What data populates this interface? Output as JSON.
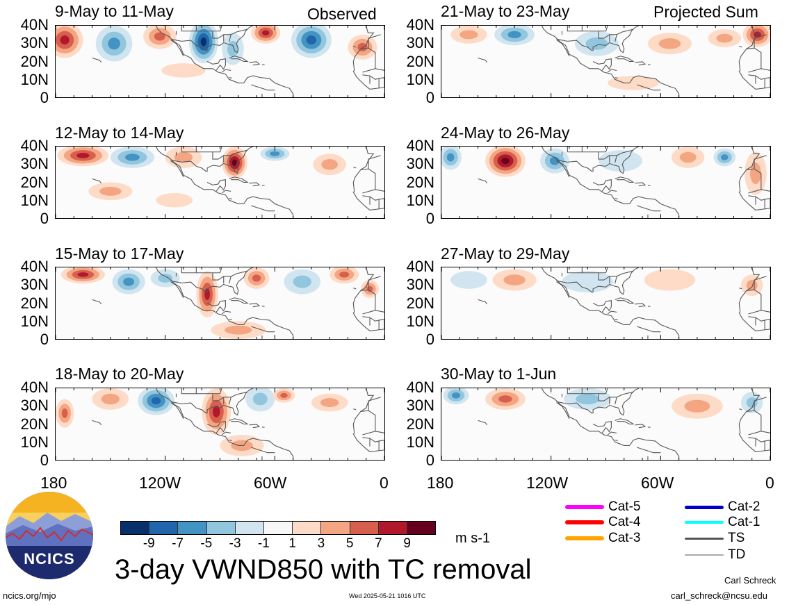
{
  "colors": {
    "n9": "#08306b",
    "n7": "#2166ac",
    "n5": "#4393c3",
    "n3": "#92c5de",
    "n1": "#d1e5f0",
    "zero": "#f7f7f7",
    "p1": "#fddbc7",
    "p3": "#f4a582",
    "p5": "#d6604d",
    "p7": "#b2182b",
    "p9": "#67001f",
    "coast": "#555555"
  },
  "labels": {
    "observed": "Observed",
    "projected": "Projected Sum",
    "main_title": "3-day VWND850 with TC removal",
    "units": "m s-1",
    "site": "ncics.org/mjo",
    "timestamp": "Wed 2025-05-21 1016 UTC",
    "author": "Carl Schreck",
    "email": "carl_schreck@ncsu.edu",
    "logo_text": "NCICS"
  },
  "lat_ticks": [
    "40N",
    "30N",
    "20N",
    "10N",
    "0"
  ],
  "lon_ticks": [
    "180",
    "120W",
    "60W",
    "0"
  ],
  "colorbar_ticks": [
    "-9",
    "-7",
    "-5",
    "-3",
    "-1",
    "1",
    "3",
    "5",
    "7",
    "9"
  ],
  "panels": [
    {
      "id": "p1",
      "title": "9-May to 11-May",
      "column": 0,
      "row": 0,
      "anomalies": [
        {
          "lon": -175,
          "lat": 32,
          "rx": 10,
          "ry": 10,
          "value": 7
        },
        {
          "lon": -148,
          "lat": 30,
          "rx": 10,
          "ry": 10,
          "value": -5
        },
        {
          "lon": -123,
          "lat": 34,
          "rx": 9,
          "ry": 7,
          "value": 5
        },
        {
          "lon": -99,
          "lat": 31,
          "rx": 8,
          "ry": 12,
          "value": -9
        },
        {
          "lon": -83,
          "lat": 27,
          "rx": 6,
          "ry": 9,
          "value": -3
        },
        {
          "lon": -65,
          "lat": 36,
          "rx": 8,
          "ry": 6,
          "value": 7
        },
        {
          "lon": -40,
          "lat": 32,
          "rx": 11,
          "ry": 10,
          "value": -7
        },
        {
          "lon": -12,
          "lat": 28,
          "rx": 8,
          "ry": 7,
          "value": 5
        },
        {
          "lon": -110,
          "lat": 15,
          "rx": 12,
          "ry": 4,
          "value": 1
        }
      ]
    },
    {
      "id": "p2",
      "title": "12-May to 14-May",
      "column": 0,
      "row": 1,
      "anomalies": [
        {
          "lon": -165,
          "lat": 35,
          "rx": 14,
          "ry": 6,
          "value": 7
        },
        {
          "lon": -138,
          "lat": 34,
          "rx": 12,
          "ry": 6,
          "value": -5
        },
        {
          "lon": -110,
          "lat": 34,
          "rx": 10,
          "ry": 6,
          "value": 3
        },
        {
          "lon": -82,
          "lat": 31,
          "rx": 7,
          "ry": 9,
          "value": 9
        },
        {
          "lon": -60,
          "lat": 36,
          "rx": 8,
          "ry": 4,
          "value": -5
        },
        {
          "lon": -30,
          "lat": 30,
          "rx": 9,
          "ry": 6,
          "value": 3
        },
        {
          "lon": -150,
          "lat": 15,
          "rx": 12,
          "ry": 5,
          "value": 3
        },
        {
          "lon": -115,
          "lat": 10,
          "rx": 10,
          "ry": 4,
          "value": 1
        }
      ]
    },
    {
      "id": "p3",
      "title": "15-May to 17-May",
      "column": 0,
      "row": 2,
      "anomalies": [
        {
          "lon": -165,
          "lat": 36,
          "rx": 12,
          "ry": 5,
          "value": 7
        },
        {
          "lon": -140,
          "lat": 32,
          "rx": 9,
          "ry": 7,
          "value": -5
        },
        {
          "lon": -120,
          "lat": 34,
          "rx": 8,
          "ry": 5,
          "value": -3
        },
        {
          "lon": -97,
          "lat": 25,
          "rx": 6,
          "ry": 13,
          "value": 7
        },
        {
          "lon": -70,
          "lat": 34,
          "rx": 7,
          "ry": 6,
          "value": 5
        },
        {
          "lon": -45,
          "lat": 32,
          "rx": 10,
          "ry": 7,
          "value": -3
        },
        {
          "lon": -22,
          "lat": 36,
          "rx": 8,
          "ry": 5,
          "value": 5
        },
        {
          "lon": -8,
          "lat": 28,
          "rx": 5,
          "ry": 5,
          "value": 5
        },
        {
          "lon": -80,
          "lat": 5,
          "rx": 15,
          "ry": 5,
          "value": 3
        }
      ]
    },
    {
      "id": "p4",
      "title": "18-May to 20-May",
      "column": 0,
      "row": 3,
      "anomalies": [
        {
          "lon": -175,
          "lat": 26,
          "rx": 5,
          "ry": 8,
          "value": 5
        },
        {
          "lon": -150,
          "lat": 34,
          "rx": 10,
          "ry": 6,
          "value": 3
        },
        {
          "lon": -125,
          "lat": 33,
          "rx": 10,
          "ry": 8,
          "value": -7
        },
        {
          "lon": -92,
          "lat": 27,
          "rx": 8,
          "ry": 13,
          "value": 7
        },
        {
          "lon": -68,
          "lat": 34,
          "rx": 8,
          "ry": 7,
          "value": -3
        },
        {
          "lon": -55,
          "lat": 36,
          "rx": 6,
          "ry": 4,
          "value": 5
        },
        {
          "lon": -30,
          "lat": 32,
          "rx": 10,
          "ry": 5,
          "value": 3
        },
        {
          "lon": -78,
          "lat": 8,
          "rx": 12,
          "ry": 6,
          "value": 3
        }
      ]
    },
    {
      "id": "p5",
      "title": "21-May to 23-May",
      "column": 1,
      "row": 0,
      "anomalies": [
        {
          "lon": -165,
          "lat": 35,
          "rx": 10,
          "ry": 5,
          "value": 3
        },
        {
          "lon": -140,
          "lat": 35,
          "rx": 11,
          "ry": 6,
          "value": -5
        },
        {
          "lon": -95,
          "lat": 30,
          "rx": 12,
          "ry": 7,
          "value": -3
        },
        {
          "lon": -55,
          "lat": 30,
          "rx": 12,
          "ry": 6,
          "value": 3
        },
        {
          "lon": -25,
          "lat": 33,
          "rx": 9,
          "ry": 5,
          "value": 3
        },
        {
          "lon": -7,
          "lat": 35,
          "rx": 8,
          "ry": 7,
          "value": 7
        },
        {
          "lon": -75,
          "lat": 8,
          "rx": 14,
          "ry": 4,
          "value": 1
        }
      ]
    },
    {
      "id": "p6",
      "title": "24-May to 26-May",
      "column": 1,
      "row": 1,
      "anomalies": [
        {
          "lon": -175,
          "lat": 34,
          "rx": 6,
          "ry": 7,
          "value": -5
        },
        {
          "lon": -145,
          "lat": 32,
          "rx": 11,
          "ry": 9,
          "value": 9
        },
        {
          "lon": -118,
          "lat": 32,
          "rx": 8,
          "ry": 7,
          "value": -5
        },
        {
          "lon": -82,
          "lat": 32,
          "rx": 12,
          "ry": 6,
          "value": -1
        },
        {
          "lon": -45,
          "lat": 34,
          "rx": 9,
          "ry": 6,
          "value": 3
        },
        {
          "lon": -25,
          "lat": 34,
          "rx": 6,
          "ry": 5,
          "value": -5
        },
        {
          "lon": -8,
          "lat": 25,
          "rx": 6,
          "ry": 12,
          "value": 3
        }
      ]
    },
    {
      "id": "p7",
      "title": "27-May to 29-May",
      "column": 1,
      "row": 2,
      "anomalies": [
        {
          "lon": -165,
          "lat": 33,
          "rx": 10,
          "ry": 5,
          "value": -1
        },
        {
          "lon": -140,
          "lat": 33,
          "rx": 12,
          "ry": 6,
          "value": 3
        },
        {
          "lon": -100,
          "lat": 32,
          "rx": 14,
          "ry": 6,
          "value": -1
        },
        {
          "lon": -55,
          "lat": 33,
          "rx": 14,
          "ry": 6,
          "value": 1
        },
        {
          "lon": -10,
          "lat": 30,
          "rx": 6,
          "ry": 6,
          "value": 3
        }
      ]
    },
    {
      "id": "p8",
      "title": "30-May to 1-Jun",
      "column": 1,
      "row": 3,
      "anomalies": [
        {
          "lon": -172,
          "lat": 36,
          "rx": 7,
          "ry": 5,
          "value": -5
        },
        {
          "lon": -145,
          "lat": 34,
          "rx": 11,
          "ry": 6,
          "value": 5
        },
        {
          "lon": -100,
          "lat": 34,
          "rx": 13,
          "ry": 6,
          "value": -3
        },
        {
          "lon": -40,
          "lat": 30,
          "rx": 14,
          "ry": 7,
          "value": 3
        },
        {
          "lon": -10,
          "lat": 32,
          "rx": 6,
          "ry": 6,
          "value": -3
        }
      ]
    }
  ],
  "legend": [
    {
      "name": "Cat-5",
      "color": "#ff00ff",
      "width": 6
    },
    {
      "name": "Cat-4",
      "color": "#ff0000",
      "width": 6
    },
    {
      "name": "Cat-3",
      "color": "#ffa500",
      "width": 6
    },
    {
      "name": "Cat-2",
      "color": "#0000cc",
      "width": 5
    },
    {
      "name": "Cat-1",
      "color": "#00ffff",
      "width": 4
    },
    {
      "name": "TS",
      "color": "#555555",
      "width": 3
    },
    {
      "name": "TD",
      "color": "#aaaaaa",
      "width": 1.5
    }
  ]
}
